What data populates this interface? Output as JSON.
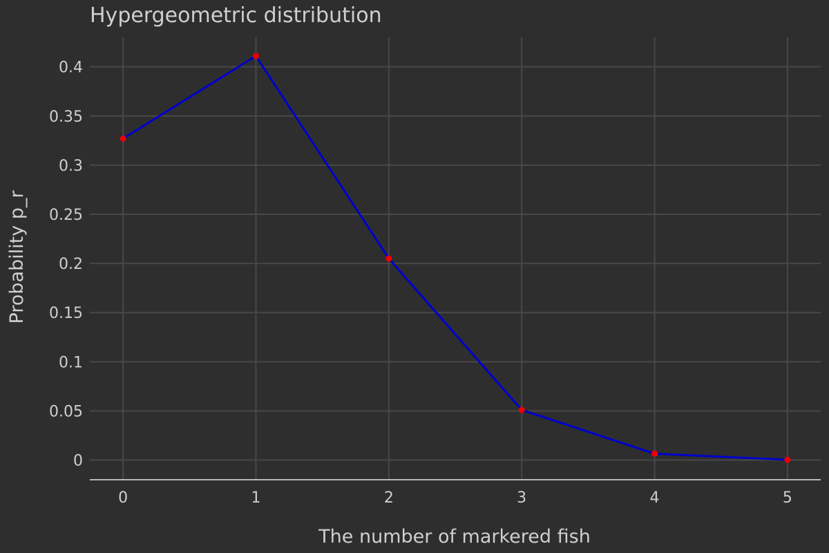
{
  "chart_data": {
    "type": "line",
    "title": "Hypergeometric distribution",
    "xlabel": "The number of markered fish",
    "ylabel": "Probability p_r",
    "x": [
      0,
      1,
      2,
      3,
      4,
      5
    ],
    "series": [
      {
        "values": [
          0.327,
          0.411,
          0.205,
          0.051,
          0.0065,
          0.0003
        ]
      }
    ],
    "xlim": [
      -0.25,
      5.25
    ],
    "ylim": [
      -0.02,
      0.43
    ],
    "x_ticks": [
      0,
      1,
      2,
      3,
      4,
      5
    ],
    "x_tick_labels": [
      "0",
      "1",
      "2",
      "3",
      "4",
      "5"
    ],
    "y_ticks": [
      0,
      0.05,
      0.1,
      0.15,
      0.2,
      0.25,
      0.3,
      0.35,
      0.4
    ],
    "y_tick_labels": [
      "0",
      "0.05",
      "0.1",
      "0.15",
      "0.2",
      "0.25",
      "0.3",
      "0.35",
      "0.4"
    ],
    "grid": true,
    "legend": "none",
    "colors": {
      "background": "#2e2e2e",
      "line": "#0000cc",
      "marker": "#ee0000",
      "grid": "#484848",
      "axis": "#b8b8b8",
      "text": "#cfcfcf"
    }
  }
}
